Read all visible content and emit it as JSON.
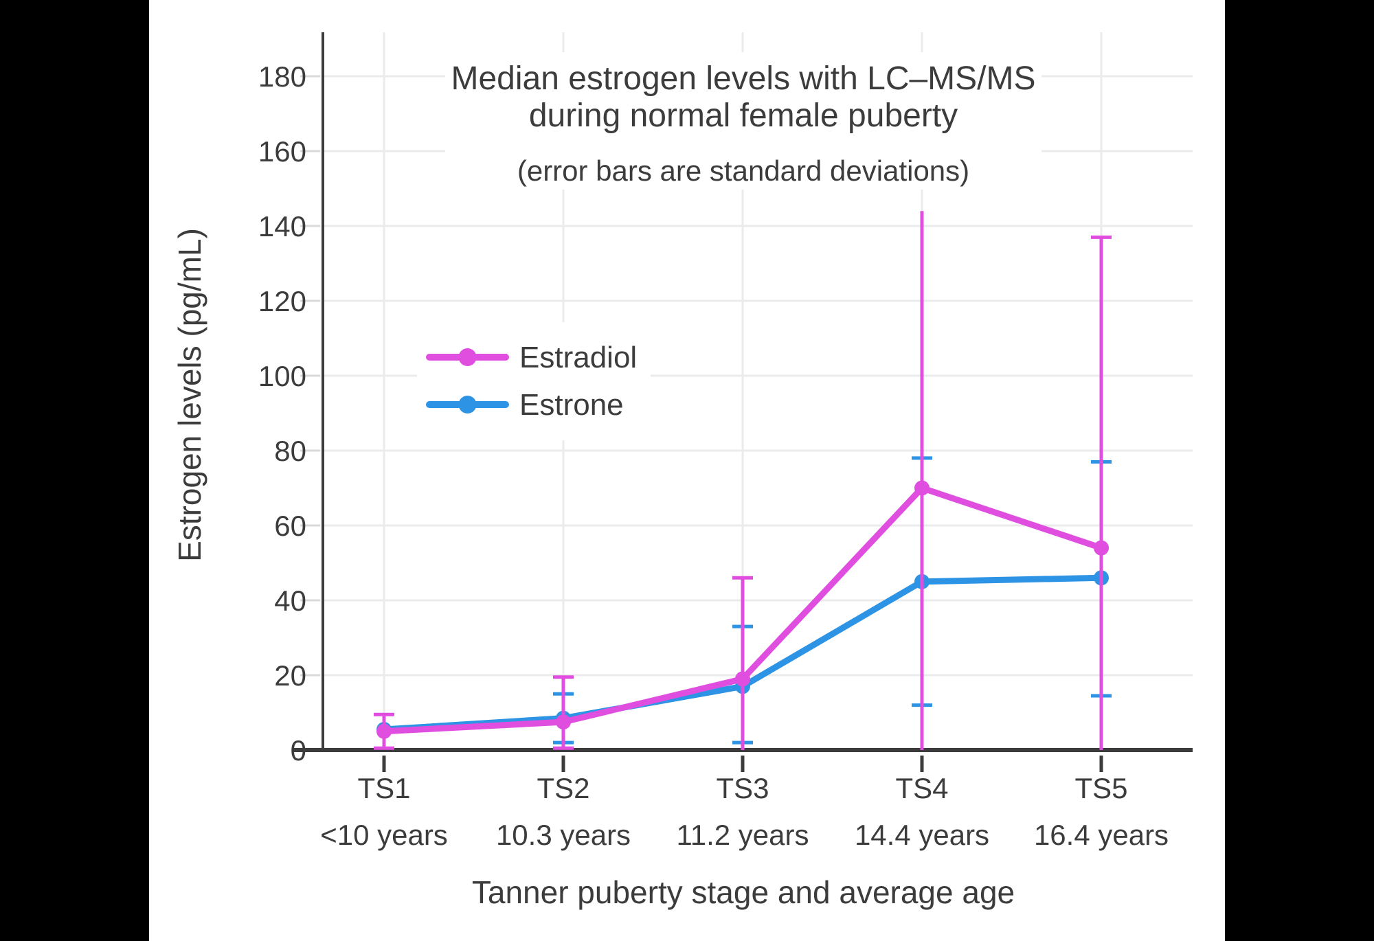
{
  "chart_data": {
    "type": "line",
    "title_line1": "Median estrogen levels with LC–MS/MS",
    "title_line2": "during normal female puberty",
    "subtitle": "(error bars are standard deviations)",
    "xlabel": "Tanner puberty stage and average age",
    "ylabel": "Estrogen levels (pg/mL)",
    "ylim": [
      0,
      191
    ],
    "yticks": [
      0,
      20,
      40,
      60,
      80,
      100,
      120,
      140,
      160,
      180
    ],
    "grid": true,
    "legend_position": "upper-left-inside",
    "categories": [
      "TS1",
      "TS2",
      "TS3",
      "TS4",
      "TS5"
    ],
    "category_ages": [
      "<10 years",
      "10.3 years",
      "11.2 years",
      "14.4 years",
      "16.4 years"
    ],
    "series": [
      {
        "name": "Estradiol",
        "color": "#E04EE0",
        "values": [
          5,
          7.5,
          19,
          70,
          54
        ],
        "error_low": [
          0.5,
          0.5,
          0,
          0,
          0
        ],
        "error_high": [
          9.5,
          19.5,
          46,
          144,
          137
        ],
        "cap_low": [
          true,
          true,
          false,
          false,
          false
        ],
        "cap_high": [
          true,
          true,
          true,
          false,
          true
        ]
      },
      {
        "name": "Estrone",
        "color": "#2D93E4",
        "values": [
          5.5,
          8.5,
          17,
          45,
          46
        ],
        "error_low": [
          null,
          2,
          2,
          12,
          14.5
        ],
        "error_high": [
          null,
          15,
          33,
          78,
          77
        ],
        "cap_low": [
          false,
          true,
          true,
          true,
          true
        ],
        "cap_high": [
          false,
          true,
          true,
          true,
          true
        ]
      }
    ],
    "colors": {
      "page_background": "#000000",
      "plot_background": "#FFFFFF",
      "axis": "#3C3C3C",
      "grid": "#EBEBEB",
      "y_tick": "#D9D9D9",
      "text": "#3C3C3C"
    }
  }
}
